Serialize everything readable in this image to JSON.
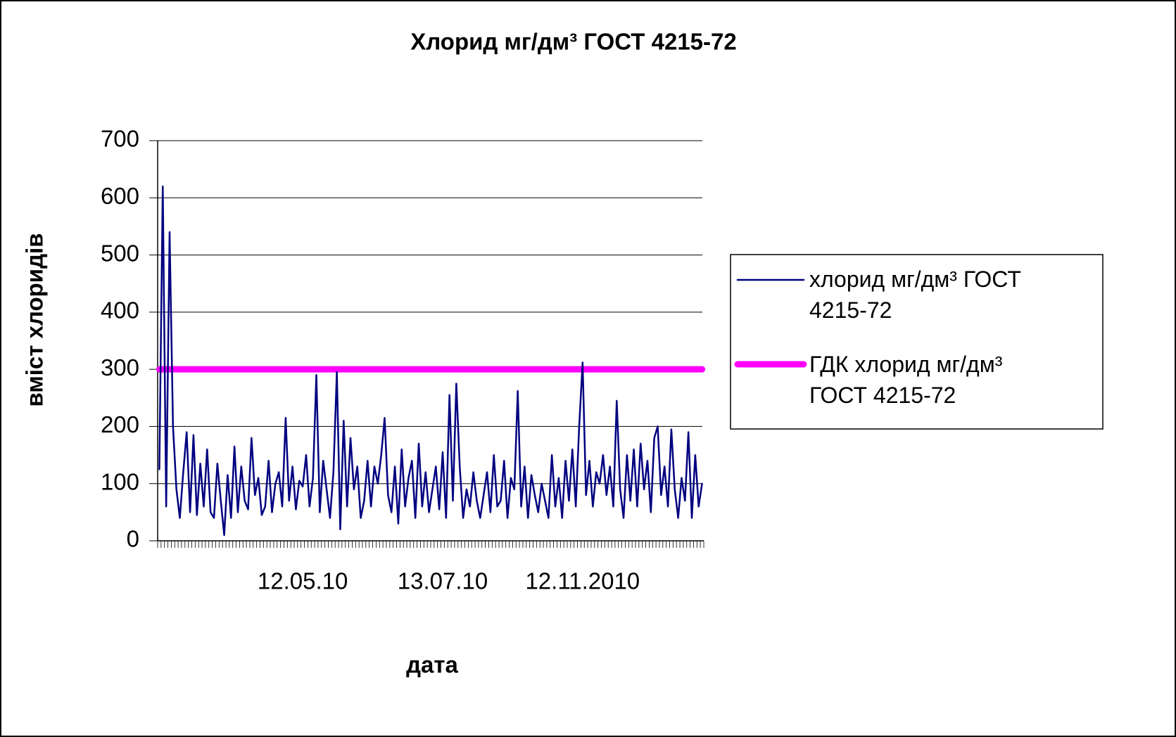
{
  "chart_data": {
    "type": "line",
    "title": "Хлорид мг/дм³ ГОСТ 4215-72",
    "y_label": "вміст хлоридів",
    "x_label": "дата",
    "categories": [
      null,
      null,
      null,
      null,
      null,
      null,
      null,
      null,
      null,
      null,
      null,
      null,
      null,
      null,
      null,
      null,
      null,
      null,
      null,
      null,
      null,
      null,
      null,
      null,
      null,
      null,
      null,
      null,
      null,
      null,
      null,
      null,
      null,
      null,
      null,
      null,
      null,
      null,
      null,
      null,
      null,
      null,
      "12.05.10",
      null,
      null,
      null,
      null,
      null,
      null,
      null,
      null,
      null,
      null,
      null,
      null,
      null,
      null,
      null,
      null,
      null,
      null,
      null,
      null,
      null,
      null,
      null,
      null,
      null,
      null,
      null,
      null,
      null,
      null,
      null,
      null,
      null,
      null,
      null,
      null,
      null,
      null,
      null,
      null,
      "13.07.10",
      null,
      null,
      null,
      null,
      null,
      null,
      null,
      null,
      null,
      null,
      null,
      null,
      null,
      null,
      null,
      null,
      null,
      null,
      null,
      null,
      null,
      null,
      null,
      null,
      null,
      null,
      null,
      null,
      null,
      null,
      null,
      null,
      null,
      null,
      null,
      null,
      null,
      null,
      null,
      null,
      "12.11.2010",
      null,
      null,
      null,
      null,
      null,
      null,
      null,
      null,
      null,
      null,
      null,
      null,
      null,
      null,
      null,
      null,
      null,
      null,
      null,
      null,
      null,
      null,
      null,
      null,
      null,
      null,
      null,
      null,
      null,
      null,
      null,
      null,
      null,
      null,
      null
    ],
    "series": [
      {
        "name": "хлорид мг/дм³ ГОСТ 4215-72",
        "color": "#000080",
        "values": [
          125,
          620,
          60,
          540,
          200,
          90,
          40,
          120,
          190,
          50,
          185,
          45,
          135,
          60,
          160,
          50,
          40,
          135,
          70,
          10,
          115,
          40,
          165,
          50,
          130,
          70,
          55,
          180,
          80,
          110,
          45,
          60,
          140,
          50,
          100,
          120,
          60,
          215,
          70,
          130,
          55,
          105,
          95,
          150,
          60,
          110,
          290,
          50,
          140,
          90,
          40,
          120,
          295,
          20,
          210,
          60,
          180,
          90,
          130,
          40,
          70,
          140,
          60,
          130,
          100,
          150,
          215,
          80,
          50,
          130,
          30,
          160,
          60,
          110,
          140,
          40,
          170,
          60,
          120,
          50,
          90,
          130,
          55,
          155,
          40,
          255,
          70,
          275,
          130,
          40,
          90,
          60,
          120,
          70,
          40,
          80,
          120,
          50,
          150,
          60,
          70,
          140,
          40,
          110,
          90,
          262,
          60,
          130,
          40,
          115,
          80,
          50,
          100,
          70,
          40,
          150,
          60,
          110,
          40,
          140,
          70,
          160,
          60,
          200,
          312,
          80,
          140,
          60,
          120,
          100,
          150,
          80,
          130,
          60,
          245,
          90,
          40,
          150,
          70,
          160,
          60,
          170,
          90,
          140,
          50,
          180,
          200,
          80,
          130,
          60,
          195,
          90,
          40,
          110,
          70,
          190,
          40,
          150,
          60,
          100
        ]
      },
      {
        "name": "ГДК хлорид мг/дм³ ГОСТ 4215-72",
        "color": "#ff00ff",
        "values": [
          300,
          300,
          300,
          300,
          300,
          300,
          300,
          300,
          300,
          300,
          300,
          300,
          300,
          300,
          300,
          300,
          300,
          300,
          300,
          300,
          300,
          300,
          300,
          300,
          300,
          300,
          300,
          300,
          300,
          300,
          300,
          300,
          300,
          300,
          300,
          300,
          300,
          300,
          300,
          300,
          300,
          300,
          300,
          300,
          300,
          300,
          300,
          300,
          300,
          300,
          300,
          300,
          300,
          300,
          300,
          300,
          300,
          300,
          300,
          300,
          300,
          300,
          300,
          300,
          300,
          300,
          300,
          300,
          300,
          300,
          300,
          300,
          300,
          300,
          300,
          300,
          300,
          300,
          300,
          300,
          300,
          300,
          300,
          300,
          300,
          300,
          300,
          300,
          300,
          300,
          300,
          300,
          300,
          300,
          300,
          300,
          300,
          300,
          300,
          300,
          300,
          300,
          300,
          300,
          300,
          300,
          300,
          300,
          300,
          300,
          300,
          300,
          300,
          300,
          300,
          300,
          300,
          300,
          300,
          300,
          300,
          300,
          300,
          300,
          300,
          300,
          300,
          300,
          300,
          300,
          300,
          300,
          300,
          300,
          300,
          300,
          300,
          300,
          300,
          300,
          300,
          300,
          300,
          300,
          300,
          300,
          300,
          300,
          300,
          300,
          300,
          300,
          300,
          300,
          300,
          300,
          300,
          300,
          300,
          300
        ]
      }
    ],
    "ylim": [
      0,
      700
    ],
    "yticks": [
      0,
      100,
      200,
      300,
      400,
      500,
      600,
      700
    ],
    "grid": true,
    "legend": "right"
  }
}
